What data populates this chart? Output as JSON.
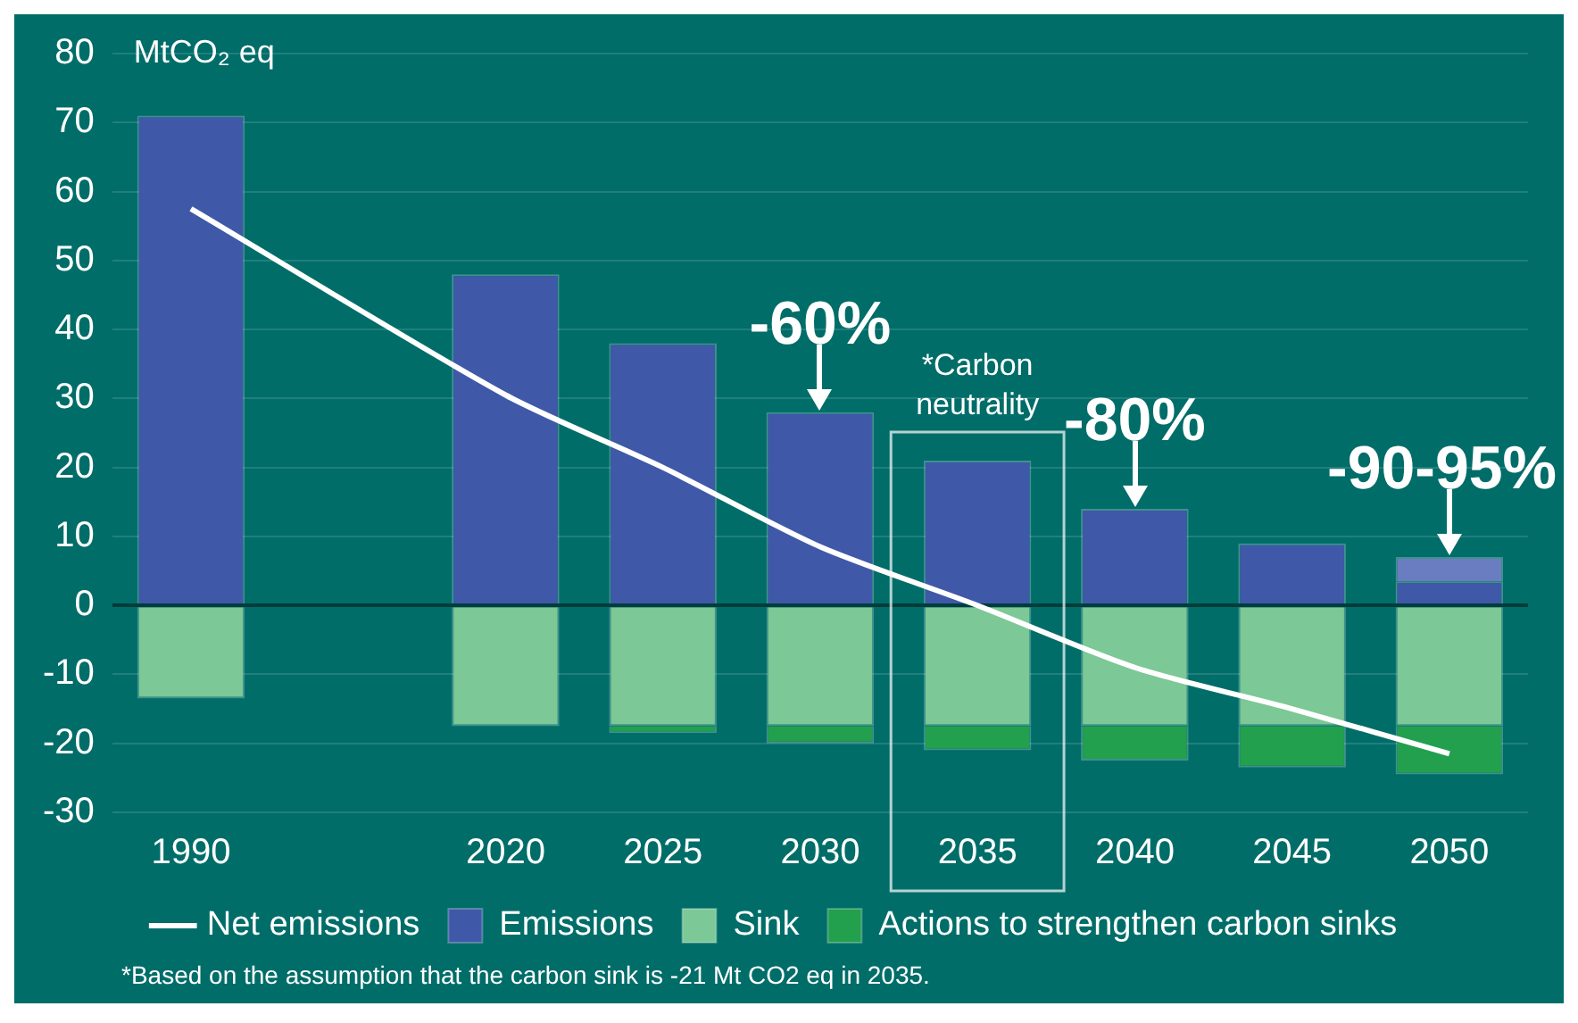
{
  "chart_data": {
    "type": "bar",
    "ylabel": "MtCO₂ eq",
    "categories": [
      "1990",
      null,
      "2020",
      "2025",
      "2030",
      "2035",
      "2040",
      "2045",
      "2050"
    ],
    "stacked": true,
    "series": [
      {
        "name": "Emissions",
        "color": "#3f58a8",
        "values": [
          71,
          null,
          48,
          38,
          28,
          21,
          14,
          9,
          3.5
        ]
      },
      {
        "color": "#6a7dc0",
        "values": [
          null,
          null,
          null,
          null,
          null,
          null,
          null,
          null,
          3.5
        ]
      },
      {
        "name": "Sink",
        "color": "#7cc896",
        "values": [
          -13.5,
          null,
          -17.5,
          -17.5,
          -17.5,
          -17.5,
          -17.5,
          -17.5,
          -17.5
        ]
      },
      {
        "name": "Actions to strengthen carbon sinks",
        "color": "#22a04e",
        "values": [
          null,
          null,
          null,
          -1,
          -2.5,
          -3.5,
          -5,
          -6,
          -7
        ]
      },
      {
        "name": "Net emissions",
        "type": "line",
        "color": "#ffffff",
        "marker": "none",
        "values": [
          57.5,
          null,
          30.5,
          20,
          8.5,
          0,
          -9,
          -15,
          -21.5
        ]
      }
    ],
    "ylim": [
      -30,
      80
    ],
    "yticks": [
      -30,
      -20,
      -10,
      0,
      10,
      20,
      30,
      40,
      50,
      60,
      70,
      80
    ],
    "grid": "y",
    "legend": "bottom",
    "annotations": [
      {
        "text": "-60%",
        "x": "2030",
        "y": 28
      },
      {
        "text": "-80%",
        "x": "2040",
        "y": 14
      },
      {
        "text": "-90-95%",
        "x": "2050",
        "y": 7
      },
      {
        "text": "*Carbon neutrality",
        "x": "2035",
        "y": 21
      },
      "*Based on the assumption that the carbon sink is -21 Mt CO2 eq in 2035."
    ]
  }
}
